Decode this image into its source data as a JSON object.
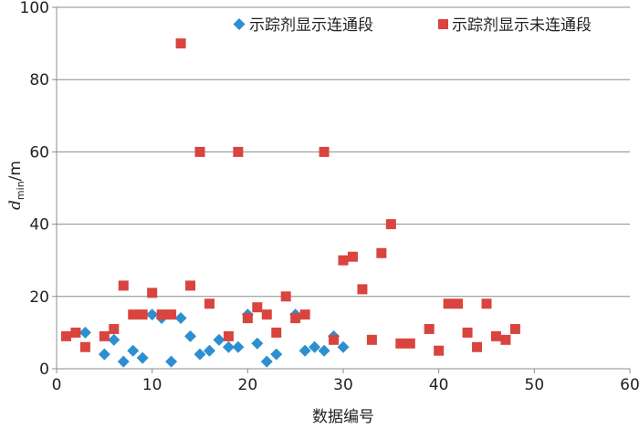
{
  "chart_data": {
    "type": "scatter",
    "xlabel": "数据编号",
    "ylabel": {
      "main": "d",
      "sub": "min",
      "unit": "/m"
    },
    "xlim": [
      0,
      60
    ],
    "ylim": [
      0,
      100
    ],
    "x_ticks": [
      0,
      10,
      20,
      30,
      40,
      50,
      60
    ],
    "y_ticks": [
      0,
      20,
      40,
      60,
      80,
      100
    ],
    "grid": "horizontal",
    "legend_position": "top-right",
    "series": [
      {
        "name": "示踪剂显示连通段",
        "marker": "diamond",
        "color": "#2e8fd0",
        "points": [
          [
            3,
            10
          ],
          [
            5,
            4
          ],
          [
            6,
            8
          ],
          [
            7,
            2
          ],
          [
            8,
            5
          ],
          [
            9,
            3
          ],
          [
            10,
            15
          ],
          [
            11,
            14
          ],
          [
            12,
            2
          ],
          [
            13,
            14
          ],
          [
            14,
            9
          ],
          [
            15,
            4
          ],
          [
            16,
            5
          ],
          [
            17,
            8
          ],
          [
            18,
            6
          ],
          [
            19,
            6
          ],
          [
            20,
            15
          ],
          [
            21,
            7
          ],
          [
            22,
            2
          ],
          [
            23,
            4
          ],
          [
            25,
            15
          ],
          [
            26,
            5
          ],
          [
            27,
            6
          ],
          [
            28,
            5
          ],
          [
            29,
            9
          ],
          [
            30,
            6
          ]
        ]
      },
      {
        "name": "示踪剂显示未连通段",
        "marker": "square",
        "color": "#d9443e",
        "points": [
          [
            1,
            9
          ],
          [
            2,
            10
          ],
          [
            3,
            6
          ],
          [
            5,
            9
          ],
          [
            6,
            11
          ],
          [
            7,
            23
          ],
          [
            8,
            15
          ],
          [
            9,
            15
          ],
          [
            10,
            21
          ],
          [
            11,
            15
          ],
          [
            12,
            15
          ],
          [
            13,
            90
          ],
          [
            14,
            23
          ],
          [
            15,
            60
          ],
          [
            16,
            18
          ],
          [
            18,
            9
          ],
          [
            19,
            60
          ],
          [
            20,
            14
          ],
          [
            21,
            17
          ],
          [
            22,
            15
          ],
          [
            23,
            10
          ],
          [
            24,
            20
          ],
          [
            25,
            14
          ],
          [
            26,
            15
          ],
          [
            28,
            60
          ],
          [
            29,
            8
          ],
          [
            30,
            30
          ],
          [
            31,
            31
          ],
          [
            32,
            22
          ],
          [
            33,
            8
          ],
          [
            34,
            32
          ],
          [
            35,
            40
          ],
          [
            36,
            7
          ],
          [
            37,
            7
          ],
          [
            39,
            11
          ],
          [
            40,
            5
          ],
          [
            41,
            18
          ],
          [
            42,
            18
          ],
          [
            43,
            10
          ],
          [
            44,
            6
          ],
          [
            45,
            18
          ],
          [
            46,
            9
          ],
          [
            47,
            8
          ],
          [
            48,
            11
          ]
        ]
      }
    ]
  }
}
